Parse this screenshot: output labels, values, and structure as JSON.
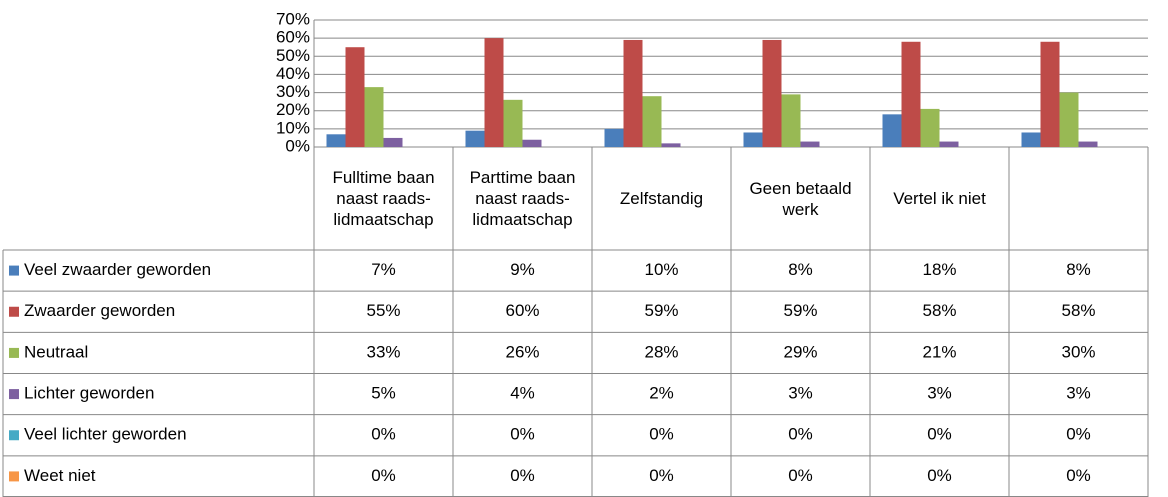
{
  "chart_data": {
    "type": "bar",
    "categories": [
      "Fulltime baan naast raads-lidmaatschap",
      "Parttime baan naast raads-lidmaatschap",
      "Zelfstandig",
      "Geen betaald werk",
      "Vertel ik niet",
      null
    ],
    "series": [
      {
        "name": "Veel zwaarder geworden",
        "color": "#4a7ebb",
        "values": [
          7,
          9,
          10,
          8,
          18,
          8
        ],
        "value_labels": [
          "7%",
          "9%",
          "10%",
          "8%",
          "18%",
          "8%"
        ]
      },
      {
        "name": "Zwaarder geworden",
        "color": "#be4b48",
        "values": [
          55,
          60,
          59,
          59,
          58,
          58
        ],
        "value_labels": [
          "55%",
          "60%",
          "59%",
          "59%",
          "58%",
          "58%"
        ]
      },
      {
        "name": "Neutraal",
        "color": "#98b954",
        "values": [
          33,
          26,
          28,
          29,
          21,
          30
        ],
        "value_labels": [
          "33%",
          "26%",
          "28%",
          "29%",
          "21%",
          "30%"
        ]
      },
      {
        "name": "Lichter geworden",
        "color": "#7d60a0",
        "values": [
          5,
          4,
          2,
          3,
          3,
          3
        ],
        "value_labels": [
          "5%",
          "4%",
          "2%",
          "3%",
          "3%",
          "3%"
        ]
      },
      {
        "name": "Veel lichter geworden",
        "color": "#46aac5",
        "values": [
          0,
          0,
          0,
          0,
          0,
          0
        ],
        "value_labels": [
          "0%",
          "0%",
          "0%",
          "0%",
          "0%",
          "0%"
        ]
      },
      {
        "name": "Weet niet",
        "color": "#f79646",
        "values": [
          0,
          0,
          0,
          0,
          0,
          0
        ],
        "value_labels": [
          "0%",
          "0%",
          "0%",
          "0%",
          "0%",
          "0%"
        ]
      }
    ],
    "ylim": [
      0,
      70
    ],
    "yticks": [
      {
        "value": 0,
        "label": "0%"
      },
      {
        "value": 10,
        "label": "10%"
      },
      {
        "value": 20,
        "label": "20%"
      },
      {
        "value": 30,
        "label": "30%"
      },
      {
        "value": 40,
        "label": "40%"
      },
      {
        "value": 50,
        "label": "50%"
      },
      {
        "value": 60,
        "label": "60%"
      },
      {
        "value": 70,
        "label": "70%"
      }
    ],
    "grid": true
  }
}
